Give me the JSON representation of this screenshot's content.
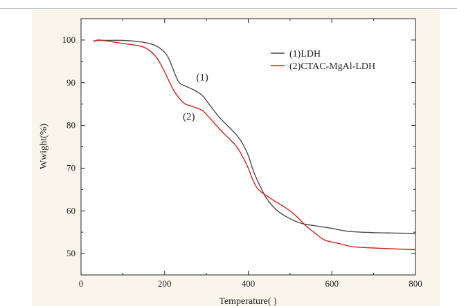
{
  "chart_data": {
    "type": "line",
    "title": "",
    "xlabel": "Temperature(  )",
    "ylabel": "Wwight(%)",
    "xlim": [
      0,
      800
    ],
    "ylim": [
      45,
      105
    ],
    "xticks": [
      0,
      200,
      400,
      600,
      800
    ],
    "yticks": [
      50,
      60,
      70,
      80,
      90,
      100
    ],
    "grid": false,
    "legend_position": "top-right",
    "series": [
      {
        "name": "(1)LDH",
        "color": "#4a4a4a",
        "x": [
          30,
          40,
          60,
          100,
          140,
          170,
          190,
          205,
          215,
          225,
          235,
          250,
          270,
          290,
          310,
          330,
          350,
          370,
          385,
          400,
          410,
          420,
          430,
          440,
          455,
          470,
          490,
          510,
          530,
          560,
          600,
          640,
          700,
          750,
          800
        ],
        "y": [
          99.8,
          99.9,
          99.9,
          99.9,
          99.6,
          99.0,
          98.0,
          96.5,
          94.5,
          92.0,
          90.0,
          89.2,
          88.3,
          87.0,
          84.5,
          82.0,
          80.0,
          78.0,
          76.0,
          73.0,
          70.0,
          67.5,
          65.5,
          63.5,
          61.5,
          60.0,
          58.7,
          57.7,
          57.0,
          56.5,
          55.9,
          55.2,
          54.9,
          54.8,
          54.7
        ]
      },
      {
        "name": "(2)CTAC-MgAl-LDH",
        "color": "#d42020",
        "x": [
          30,
          40,
          60,
          100,
          140,
          160,
          180,
          195,
          210,
          220,
          230,
          240,
          250,
          270,
          290,
          310,
          330,
          350,
          370,
          385,
          400,
          410,
          420,
          430,
          440,
          460,
          480,
          500,
          520,
          540,
          560,
          580,
          600,
          620,
          650,
          700,
          750,
          800
        ],
        "y": [
          99.6,
          100.0,
          99.8,
          99.2,
          98.6,
          97.8,
          96.0,
          93.5,
          90.5,
          88.5,
          87.0,
          85.8,
          85.0,
          84.3,
          83.5,
          81.5,
          79.3,
          77.3,
          75.3,
          73.0,
          70.0,
          67.5,
          65.5,
          64.5,
          63.8,
          62.5,
          61.3,
          60.0,
          58.3,
          56.3,
          54.8,
          53.3,
          52.7,
          52.3,
          51.6,
          51.3,
          51.1,
          50.9
        ]
      }
    ],
    "annotations": [
      {
        "text": "(1)",
        "x": 290,
        "y": 90.5
      },
      {
        "text": "(2)",
        "x": 258,
        "y": 81.3
      }
    ]
  }
}
